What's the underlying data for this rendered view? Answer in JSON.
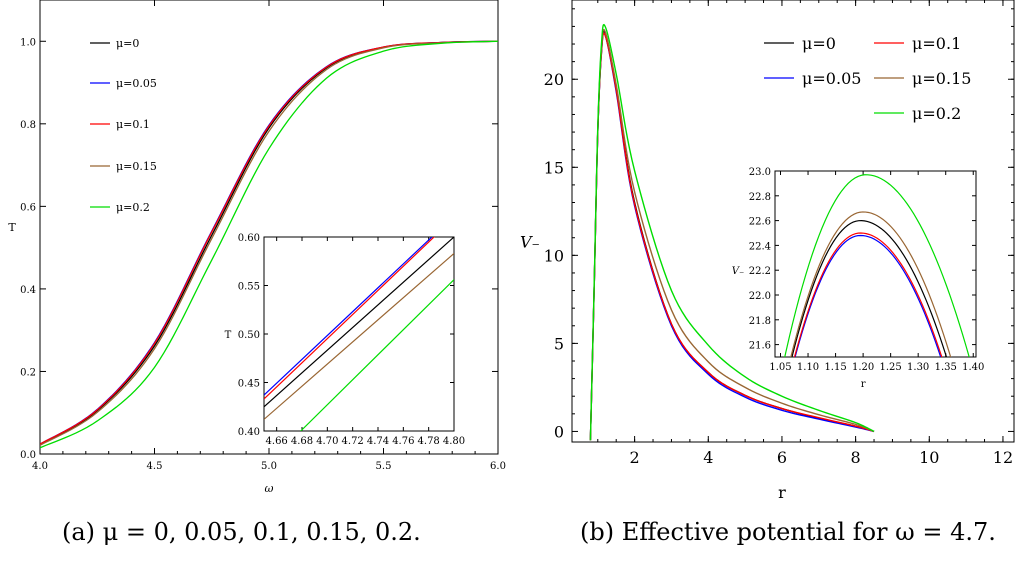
{
  "captions": {
    "a": "(a) μ = 0, 0.05, 0.1, 0.15, 0.2.",
    "b": "(b) Effective potential for ω = 4.7."
  },
  "colors": {
    "mu0": "#000000",
    "mu005": "#0000ff",
    "mu01": "#ff0000",
    "mu015": "#996633",
    "mu02": "#00dd00"
  },
  "chart_data": [
    {
      "type": "line",
      "xlabel": "ω",
      "ylabel": "T",
      "xlim": [
        4.0,
        6.0
      ],
      "ylim": [
        0.0,
        1.1
      ],
      "xticks": [
        "4.0",
        "4.5",
        "5.0",
        "5.5",
        "6.0"
      ],
      "yticks": [
        "0.0",
        "0.2",
        "0.4",
        "0.6",
        "0.8",
        "1.0"
      ],
      "legend": [
        "μ=0",
        "μ=0.05",
        "μ=0.1",
        "μ=0.15",
        "μ=0.2"
      ],
      "legend_position": "top-left",
      "series": [
        {
          "name": "μ=0",
          "x": [
            4.0,
            4.25,
            4.5,
            4.75,
            5.0,
            5.25,
            5.5,
            5.75,
            6.0
          ],
          "y": [
            0.022,
            0.105,
            0.262,
            0.53,
            0.79,
            0.935,
            0.985,
            0.997,
            1.0
          ]
        },
        {
          "name": "μ=0.05",
          "x": [
            4.0,
            4.25,
            4.5,
            4.75,
            5.0,
            5.25,
            5.5,
            5.75,
            6.0
          ],
          "y": [
            0.024,
            0.108,
            0.27,
            0.54,
            0.797,
            0.938,
            0.986,
            0.997,
            1.0
          ]
        },
        {
          "name": "μ=0.1",
          "x": [
            4.0,
            4.25,
            4.5,
            4.75,
            5.0,
            5.25,
            5.5,
            5.75,
            6.0
          ],
          "y": [
            0.024,
            0.107,
            0.268,
            0.538,
            0.795,
            0.937,
            0.986,
            0.997,
            1.0
          ]
        },
        {
          "name": "μ=0.15",
          "x": [
            4.0,
            4.25,
            4.5,
            4.75,
            5.0,
            5.25,
            5.5,
            5.75,
            6.0
          ],
          "y": [
            0.021,
            0.101,
            0.255,
            0.522,
            0.782,
            0.931,
            0.984,
            0.996,
            1.0
          ]
        },
        {
          "name": "μ=0.2",
          "x": [
            4.0,
            4.25,
            4.5,
            4.75,
            5.0,
            5.25,
            5.5,
            5.75,
            6.0
          ],
          "y": [
            0.015,
            0.08,
            0.21,
            0.47,
            0.74,
            0.91,
            0.976,
            0.995,
            1.0
          ]
        }
      ],
      "inset": {
        "xlabel": "ω",
        "ylabel": "T",
        "xlim": [
          4.65,
          4.8
        ],
        "ylim": [
          0.4,
          0.6
        ],
        "xticks": [
          "4.66",
          "4.68",
          "4.70",
          "4.72",
          "4.74",
          "4.76",
          "4.78",
          "4.80"
        ],
        "yticks": [
          "0.40",
          "0.45",
          "0.50",
          "0.55",
          "0.60"
        ],
        "series": [
          {
            "name": "μ=0",
            "x": [
              4.65,
              4.8
            ],
            "y": [
              0.425,
              0.6
            ]
          },
          {
            "name": "μ=0.05",
            "x": [
              4.65,
              4.785
            ],
            "y": [
              0.437,
              0.603
            ]
          },
          {
            "name": "μ=0.1",
            "x": [
              4.65,
              4.785
            ],
            "y": [
              0.433,
              0.601
            ]
          },
          {
            "name": "μ=0.15",
            "x": [
              4.65,
              4.8
            ],
            "y": [
              0.412,
              0.583
            ]
          },
          {
            "name": "μ=0.2",
            "x": [
              4.679,
              4.8
            ],
            "y": [
              0.4,
              0.556
            ]
          }
        ]
      }
    },
    {
      "type": "line",
      "xlabel": "r",
      "ylabel": "V₋",
      "xlim": [
        0.3,
        12.3
      ],
      "ylim": [
        -0.6,
        24.5
      ],
      "xticks": [
        "2",
        "4",
        "6",
        "8",
        "10",
        "12"
      ],
      "yticks": [
        "0",
        "5",
        "10",
        "15",
        "20"
      ],
      "legend": [
        "μ=0",
        "μ=0.1",
        "μ=0.05",
        "μ=0.15",
        "μ=0.2"
      ],
      "legend_position": "top-right",
      "series": [
        {
          "name": "μ=0",
          "x": [
            0.8,
            0.9,
            1.0,
            1.1,
            1.2,
            1.5,
            2.0,
            3.0,
            4.0,
            5.0,
            6.0,
            7.0,
            8.0,
            8.5
          ],
          "y": [
            -0.5,
            8,
            17,
            21.6,
            22.6,
            19.5,
            13.0,
            6.1,
            3.35,
            2.05,
            1.3,
            0.75,
            0.3,
            0.0
          ]
        },
        {
          "name": "μ=0.05",
          "x": [
            0.8,
            0.9,
            1.0,
            1.1,
            1.2,
            1.5,
            2.0,
            3.0,
            4.0,
            5.0,
            6.0,
            7.0,
            8.0,
            8.5
          ],
          "y": [
            -0.5,
            8,
            17,
            21.5,
            22.5,
            19.3,
            12.8,
            6.0,
            3.25,
            1.95,
            1.2,
            0.7,
            0.25,
            0.0
          ]
        },
        {
          "name": "μ=0.1",
          "x": [
            0.8,
            0.9,
            1.0,
            1.1,
            1.2,
            1.5,
            2.0,
            3.0,
            4.0,
            5.0,
            6.0,
            7.0,
            8.0,
            8.5
          ],
          "y": [
            -0.5,
            8,
            17,
            21.5,
            22.5,
            19.4,
            12.9,
            6.1,
            3.35,
            2.05,
            1.3,
            0.78,
            0.3,
            0.0
          ]
        },
        {
          "name": "μ=0.15",
          "x": [
            0.8,
            0.9,
            1.0,
            1.1,
            1.2,
            1.5,
            2.0,
            3.0,
            4.0,
            5.0,
            6.0,
            7.0,
            8.0,
            8.5
          ],
          "y": [
            -0.5,
            8,
            17.1,
            21.7,
            22.7,
            19.7,
            13.6,
            6.9,
            3.95,
            2.5,
            1.6,
            0.95,
            0.4,
            0.0
          ]
        },
        {
          "name": "μ=0.2",
          "x": [
            0.8,
            0.9,
            1.0,
            1.1,
            1.2,
            1.5,
            2.0,
            3.0,
            4.0,
            5.0,
            6.0,
            7.0,
            8.0,
            8.5
          ],
          "y": [
            -0.5,
            8.2,
            17.3,
            22.0,
            23.0,
            20.3,
            14.8,
            8.0,
            4.9,
            3.1,
            2.0,
            1.2,
            0.5,
            0.0
          ]
        }
      ],
      "inset": {
        "xlabel": "r",
        "ylabel": "V₋",
        "xlim": [
          1.04,
          1.405
        ],
        "ylim": [
          21.5,
          23.0
        ],
        "xticks": [
          "1.05",
          "1.10",
          "1.15",
          "1.20",
          "1.25",
          "1.30",
          "1.35",
          "1.40"
        ],
        "yticks": [
          "21.6",
          "21.8",
          "22.0",
          "22.2",
          "22.4",
          "22.6",
          "22.8",
          "23.0"
        ],
        "series": [
          {
            "name": "μ=0",
            "peak": [
              1.195,
              22.6
            ],
            "roots": [
              1.06,
              1.365
            ]
          },
          {
            "name": "μ=0.05",
            "peak": [
              1.195,
              22.48
            ],
            "roots": [
              1.065,
              1.355
            ]
          },
          {
            "name": "μ=0.1",
            "peak": [
              1.195,
              22.5
            ],
            "roots": [
              1.064,
              1.357
            ]
          },
          {
            "name": "μ=0.15",
            "peak": [
              1.2,
              22.67
            ],
            "roots": [
              1.058,
              1.372
            ]
          },
          {
            "name": "μ=0.2",
            "peak": [
              1.205,
              22.97
            ],
            "roots": [
              1.048,
              1.405
            ]
          }
        ]
      }
    }
  ]
}
